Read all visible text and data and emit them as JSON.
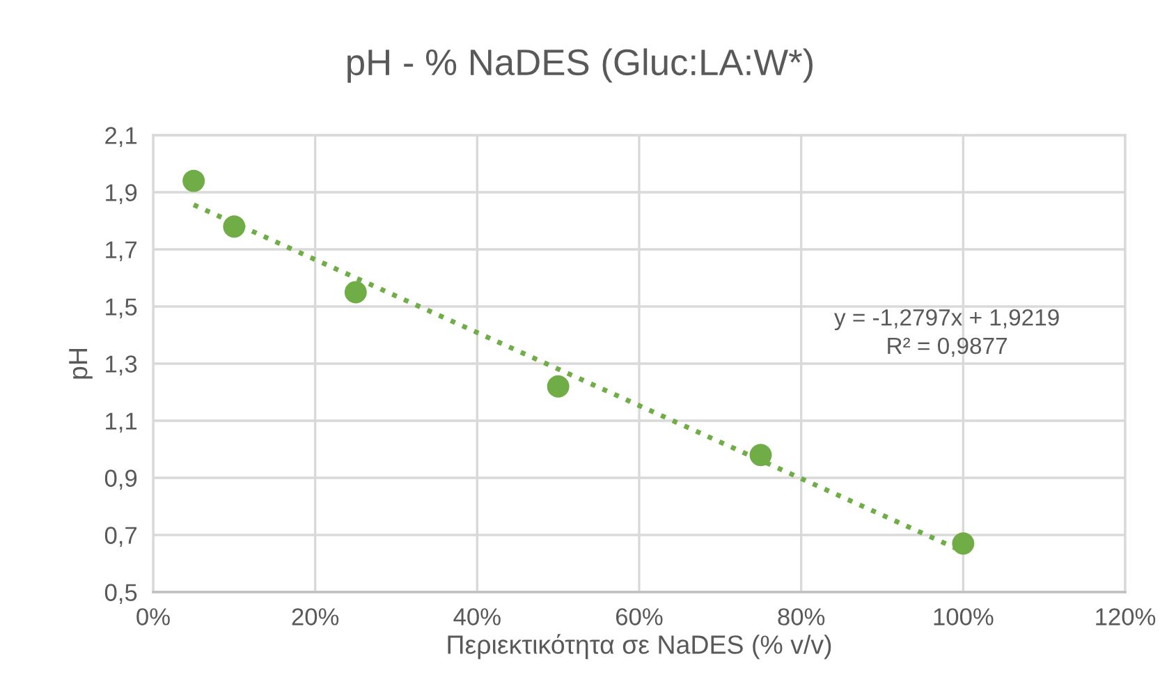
{
  "chart_data": {
    "type": "scatter",
    "title": "pH - % NaDES (Gluc:LA:W*)",
    "xlabel": "Περιεκτικότητα σε NaDES (% v/v)",
    "ylabel": "pH",
    "x": [
      0.05,
      0.1,
      0.25,
      0.5,
      0.75,
      1.0
    ],
    "series": [
      {
        "color": "#70ad47",
        "marker": "circle",
        "values": [
          1.94,
          1.78,
          1.55,
          1.22,
          0.98,
          0.67
        ]
      },
      {
        "type": "line",
        "color": "#70ad47",
        "line_style": "dotted",
        "marker": "none",
        "x": [
          0.05,
          1.0
        ],
        "values": [
          1.856,
          0.642
        ]
      }
    ],
    "annotations": [
      "y = -1,2797x + 1,9219\nR² = 0,9877"
    ],
    "xlim": [
      0,
      1.2
    ],
    "xticks": [
      {
        "value": 0,
        "label": "0%"
      },
      {
        "value": 0.2,
        "label": "20%"
      },
      {
        "value": 0.4,
        "label": "40%"
      },
      {
        "value": 0.6,
        "label": "60%"
      },
      {
        "value": 0.8,
        "label": "80%"
      },
      {
        "value": 1.0,
        "label": "100%"
      },
      {
        "value": 1.2,
        "label": "120%"
      }
    ],
    "ylim": [
      0.5,
      2.1
    ],
    "yticks": [
      {
        "value": 0.5,
        "label": "0,5"
      },
      {
        "value": 0.7,
        "label": "0,7"
      },
      {
        "value": 0.9,
        "label": "0,9"
      },
      {
        "value": 1.1,
        "label": "1,1"
      },
      {
        "value": 1.3,
        "label": "1,3"
      },
      {
        "value": 1.5,
        "label": "1,5"
      },
      {
        "value": 1.7,
        "label": "1,7"
      },
      {
        "value": 1.9,
        "label": "1,9"
      },
      {
        "value": 2.1,
        "label": "2,1"
      }
    ],
    "grid": true,
    "legend": false
  }
}
